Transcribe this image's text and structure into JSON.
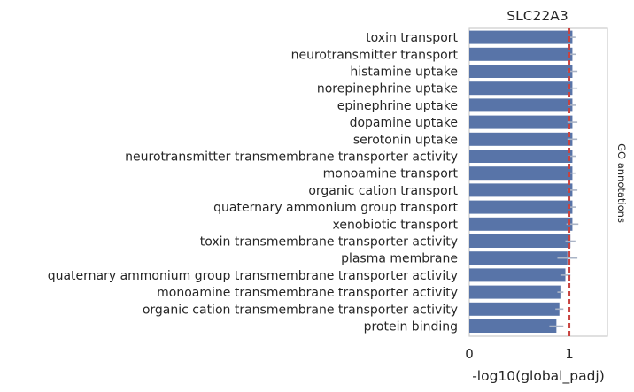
{
  "chart_data": {
    "type": "bar",
    "orientation": "horizontal",
    "title": "SLC22A3",
    "xlabel": "-log10(global_padj)",
    "ylabel": "",
    "side_label": "GO annotations",
    "xlim": [
      0,
      1.38
    ],
    "xticks": [
      0,
      1
    ],
    "threshold": 1.0,
    "categories": [
      "toxin transport",
      "neurotransmitter transport",
      "histamine uptake",
      "norepinephrine uptake",
      "epinephrine uptake",
      "dopamine uptake",
      "serotonin uptake",
      "neurotransmitter transmembrane transporter activity",
      "monoamine transport",
      "organic cation transport",
      "quaternary ammonium group transport",
      "xenobiotic transport",
      "toxin transmembrane transporter activity",
      "plasma membrane",
      "quaternary ammonium group transmembrane transporter activity",
      "monoamine transmembrane transporter activity",
      "organic cation transmembrane transporter activity",
      "protein binding"
    ],
    "values": [
      1.03,
      1.03,
      1.03,
      1.03,
      1.03,
      1.03,
      1.03,
      1.03,
      1.03,
      1.03,
      1.03,
      1.03,
      1.01,
      0.98,
      0.96,
      0.91,
      0.9,
      0.87
    ],
    "errors": [
      0.03,
      0.04,
      0.05,
      0.05,
      0.04,
      0.05,
      0.05,
      0.04,
      0.03,
      0.05,
      0.04,
      0.06,
      0.05,
      0.1,
      0.05,
      0.03,
      0.04,
      0.07
    ],
    "colors": {
      "bar": "#5874a8",
      "error": "#aab4c6",
      "threshold": "#c8423f",
      "frame": "#cccccc"
    }
  }
}
